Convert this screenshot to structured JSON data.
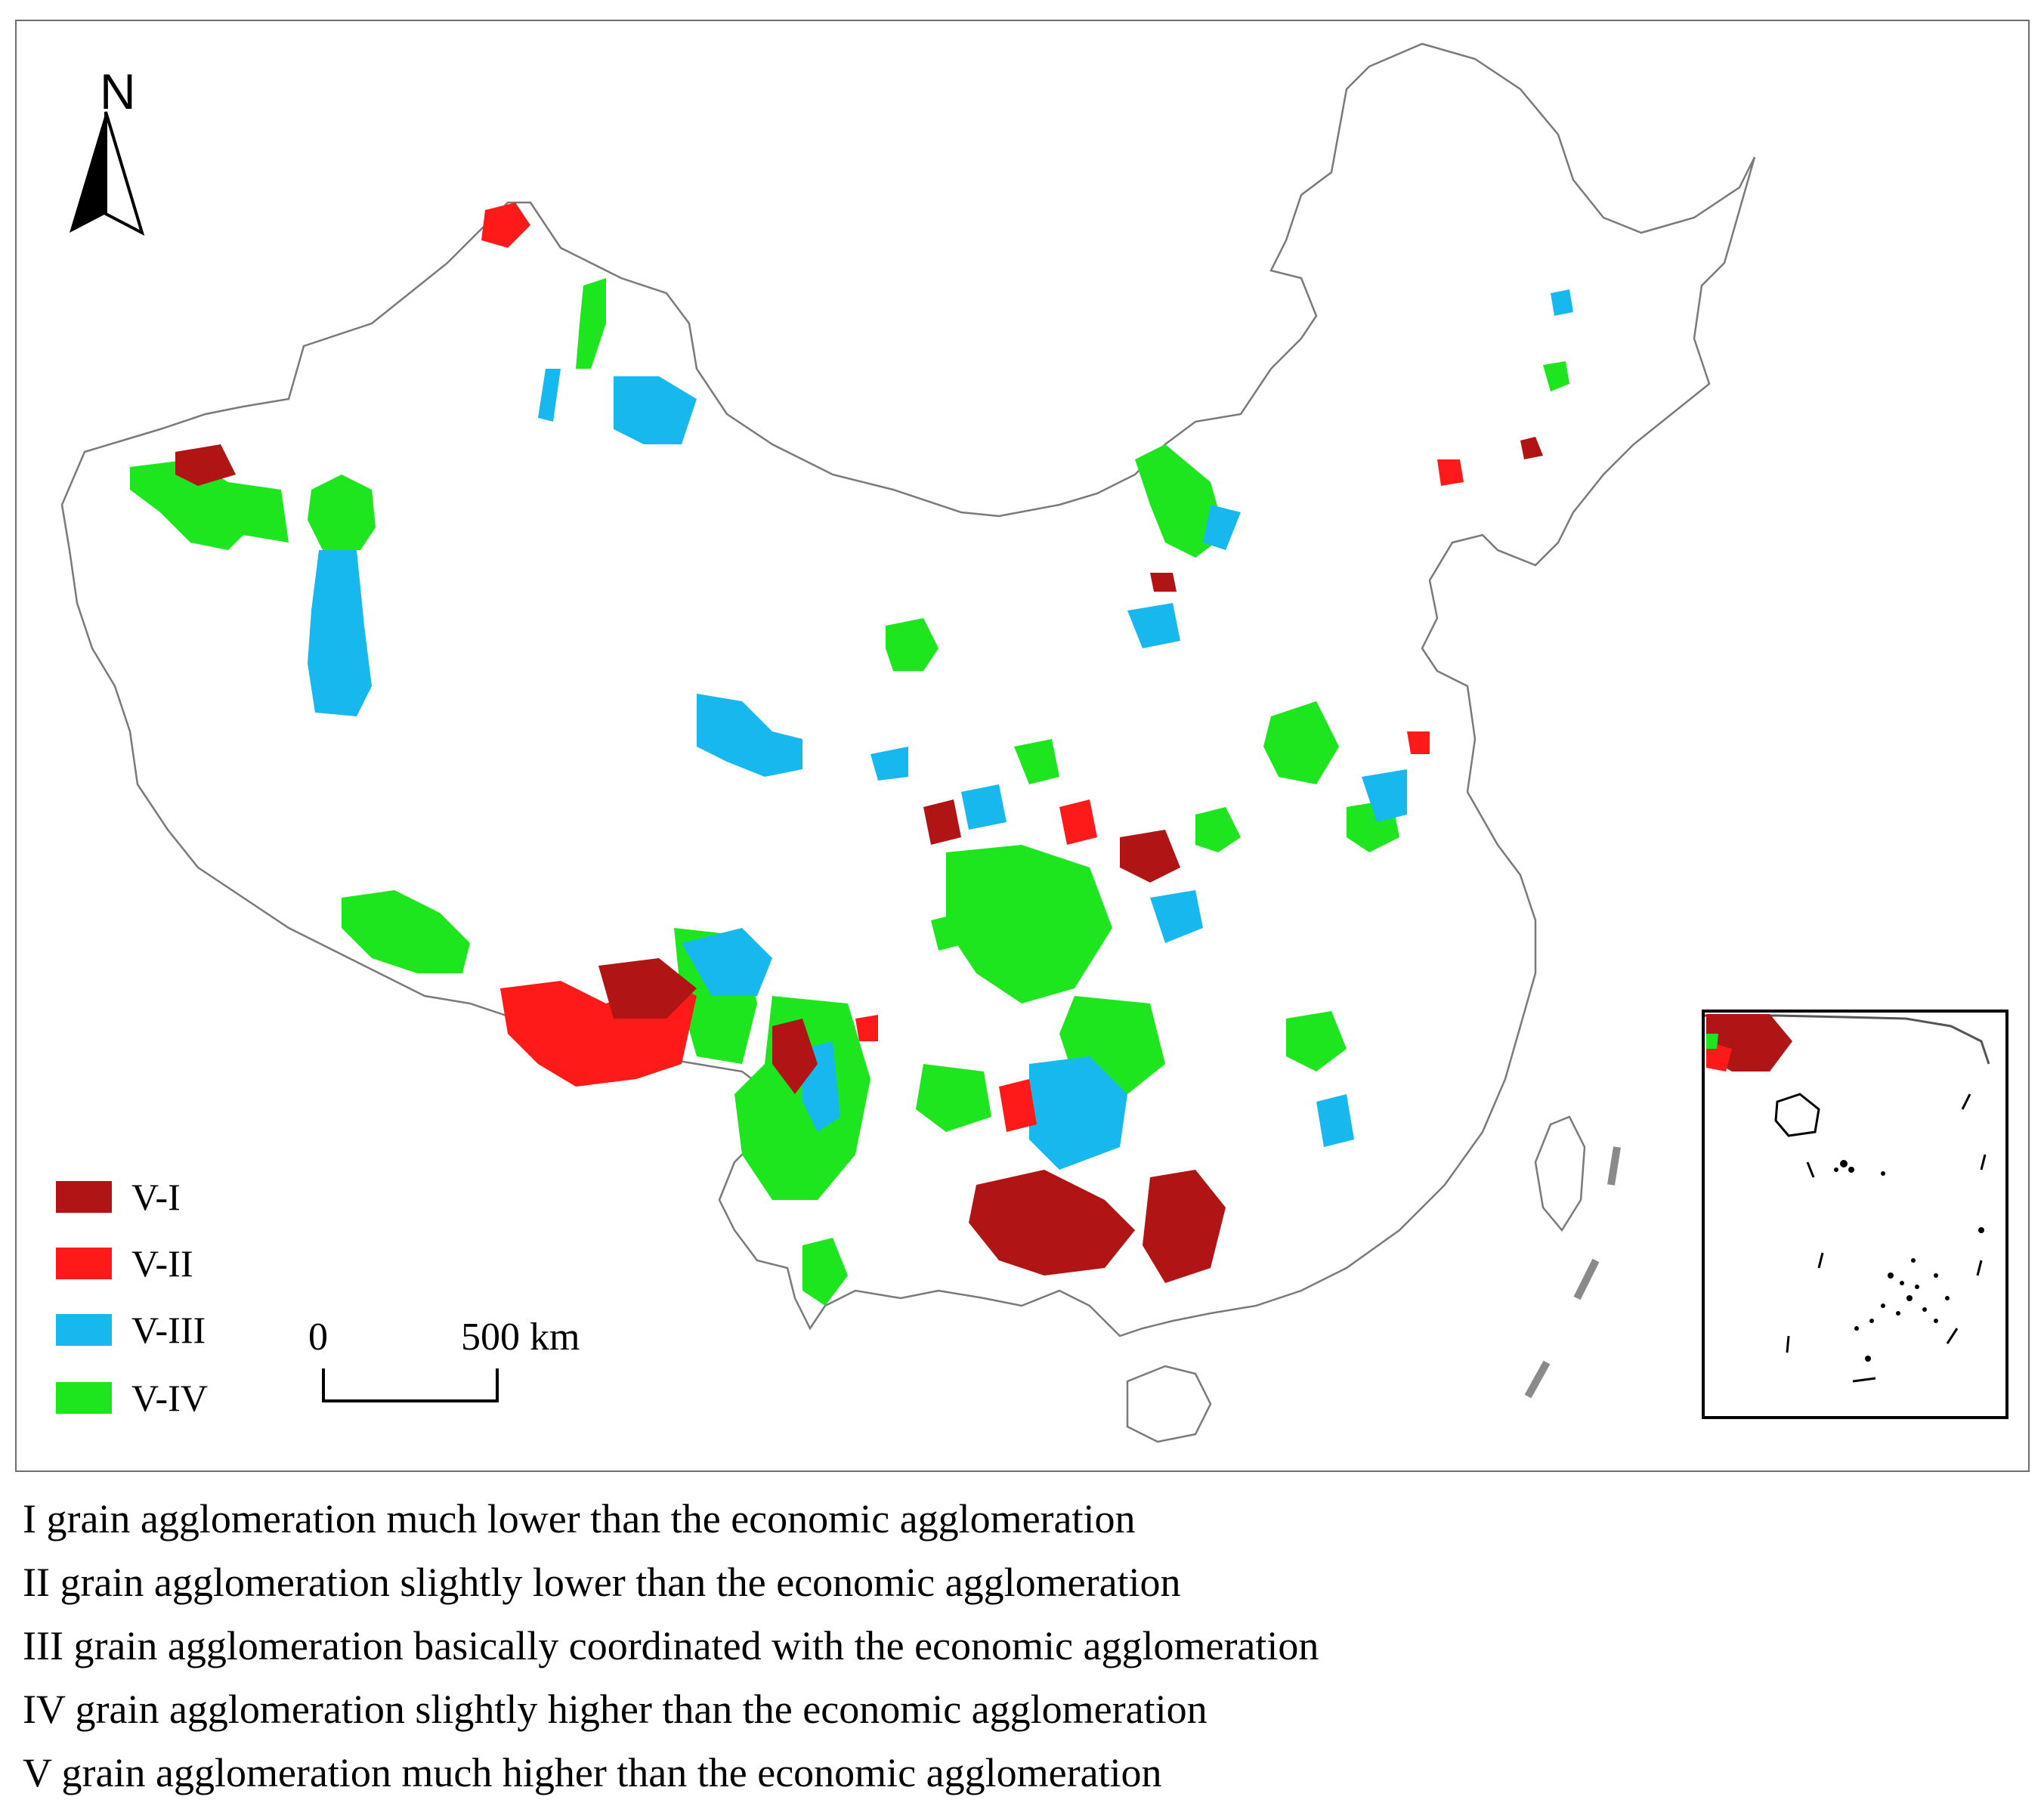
{
  "north_arrow": {
    "label": "N"
  },
  "legend": [
    {
      "label": "V-I",
      "color": "#b01414"
    },
    {
      "label": "V-II",
      "color": "#ff1a1a"
    },
    {
      "label": "V-III",
      "color": "#17b8ee"
    },
    {
      "label": "V-IV",
      "color": "#1ee61e"
    }
  ],
  "scale_bar": {
    "start_label": "0",
    "end_label": "500 km"
  },
  "colors": {
    "frame": "#6e6e6e",
    "boundary": "#7a7a7a",
    "background": "#ffffff"
  },
  "caption": [
    "I grain agglomeration much lower than the economic agglomeration",
    "II grain agglomeration slightly  lower than the economic agglomeration",
    "III grain agglomeration basically coordinated with the economic agglomeration",
    "IV grain agglomeration slightly higher  than the economic agglomeration",
    "V grain agglomeration much higher  than the economic agglomeration"
  ]
}
